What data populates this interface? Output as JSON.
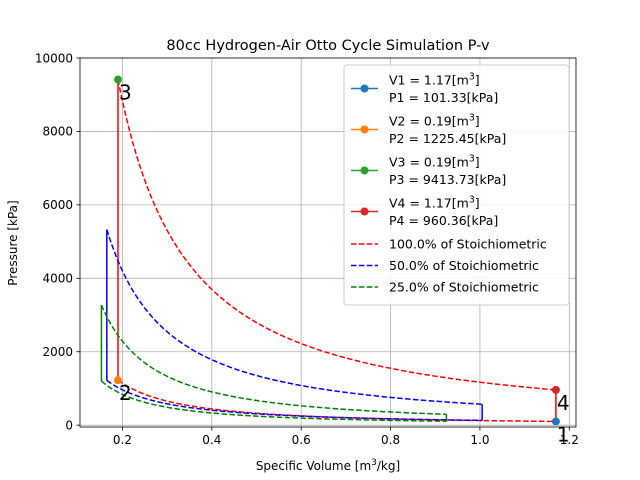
{
  "chart_data": {
    "type": "line",
    "title": "80cc Hydrogen-Air Otto Cycle Simulation P-v",
    "xlabel": "Specific Volume [m³/kg]",
    "ylabel": "Pressure [kPa]",
    "xlim": [
      0.105,
      1.215
    ],
    "ylim": [
      -50,
      10000
    ],
    "xticks": [
      0.2,
      0.4,
      0.6,
      0.8,
      1.0,
      1.2
    ],
    "xtick_labels": [
      "0.2",
      "0.4",
      "0.6",
      "0.8",
      "1.0",
      "1.2"
    ],
    "yticks": [
      0,
      2000,
      4000,
      6000,
      8000,
      10000
    ],
    "ytick_labels": [
      "0",
      "2000",
      "4000",
      "6000",
      "8000",
      "10000"
    ],
    "grid": true,
    "legend_position": "upper right",
    "state_points": [
      {
        "id": "1",
        "v": 1.17,
        "p": 101.33,
        "color": "#1f77b4",
        "legend_line1": "V1 = 1.17[m³]",
        "legend_line2": "P1 = 101.33[kPa]"
      },
      {
        "id": "2",
        "v": 0.19,
        "p": 1225.45,
        "color": "#ff7f0e",
        "legend_line1": "V2 = 0.19[m³]",
        "legend_line2": "P2 = 1225.45[kPa]"
      },
      {
        "id": "3",
        "v": 0.19,
        "p": 9413.73,
        "color": "#2ca02c",
        "legend_line1": "V3 = 0.19[m³]",
        "legend_line2": "P3 = 9413.73[kPa]"
      },
      {
        "id": "4",
        "v": 1.17,
        "p": 960.36,
        "color": "#d62728",
        "legend_line1": "V4 = 1.17[m³]",
        "legend_line2": "P4 = 960.36[kPa]"
      }
    ],
    "series": [
      {
        "name": "100.0% of Stoichiometric",
        "color": "#ff0000",
        "v_min": 0.19,
        "v_max": 1.17,
        "p1": 101.33,
        "p2": 1225.45,
        "p3": 9413.73,
        "p4": 960.36
      },
      {
        "name": "50.0% of Stoichiometric",
        "color": "#0000ff",
        "v_min": 0.165,
        "v_max": 1.005,
        "p1": 130,
        "p2": 1220,
        "p3": 5330,
        "p4": 570
      },
      {
        "name": "25.0% of Stoichiometric",
        "color": "#008000",
        "v_min": 0.153,
        "v_max": 0.925,
        "p1": 108,
        "p2": 1200,
        "p3": 3270,
        "p4": 296
      }
    ],
    "legend_entries": [
      {
        "kind": "marker",
        "color": "#1f77b4",
        "line1": "V1 = 1.17[m³]",
        "line2": "P1 = 101.33[kPa]"
      },
      {
        "kind": "marker",
        "color": "#ff7f0e",
        "line1": "V2 = 0.19[m³]",
        "line2": "P2 = 1225.45[kPa]"
      },
      {
        "kind": "marker",
        "color": "#2ca02c",
        "line1": "V3 = 0.19[m³]",
        "line2": "P3 = 9413.73[kPa]"
      },
      {
        "kind": "marker",
        "color": "#d62728",
        "line1": "V4 = 1.17[m³]",
        "line2": "P4 = 960.36[kPa]"
      },
      {
        "kind": "dashed",
        "color": "#ff0000",
        "line1": "100.0% of Stoichiometric"
      },
      {
        "kind": "dashed",
        "color": "#0000ff",
        "line1": "50.0% of Stoichiometric"
      },
      {
        "kind": "dashed",
        "color": "#008000",
        "line1": "25.0% of Stoichiometric"
      }
    ]
  }
}
